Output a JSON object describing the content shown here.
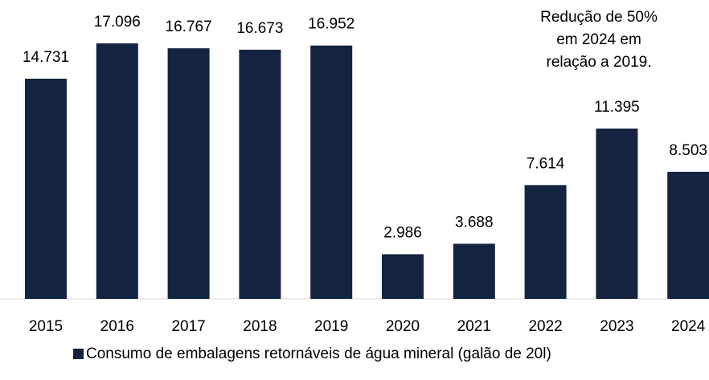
{
  "chart_data": {
    "type": "bar",
    "categories": [
      "2015",
      "2016",
      "2017",
      "2018",
      "2019",
      "2020",
      "2021",
      "2022",
      "2023",
      "2024"
    ],
    "series": [
      {
        "name": "Consumo de embalagens retornáveis de água mineral (galão de 20l)",
        "color": "#14233f",
        "values": [
          14731,
          17096,
          16767,
          16673,
          16952,
          2986,
          3688,
          7614,
          11395,
          8503
        ],
        "value_labels": [
          "14.731",
          "17.096",
          "16.767",
          "16.673",
          "16.952",
          "2.986",
          "3.688",
          "7.614",
          "11.395",
          "8.503"
        ]
      }
    ],
    "annotation": [
      "Redução de 50%",
      "em 2024 em",
      "relação a 2019."
    ]
  }
}
